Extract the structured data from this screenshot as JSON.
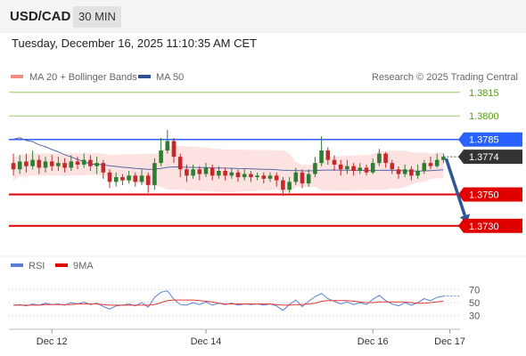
{
  "header": {
    "symbol": "USD/CAD",
    "timeframe": "30 MIN",
    "timestamp": "Tuesday, December 16, 2025 11:10:35 AM CET"
  },
  "legend": {
    "ma20_label": "MA 20 + Bollinger Bands",
    "ma50_label": "MA 50",
    "copyright": "Research © 2025 Trading Central"
  },
  "rsi_legend": {
    "rsi_label": "RSI",
    "ma_label": "9MA"
  },
  "colors": {
    "candle_up": "#2e7d32",
    "candle_down": "#c62828",
    "bollinger_fill": "#fde2e2",
    "ma50": "#5a6aa8",
    "resistance_green": "#9ccc65",
    "pivot_blue": "#2962ff",
    "support_red": "#e00000",
    "current_price_box": "#333333",
    "arrow": "#2f5597",
    "rsi_line": "#5b7fd6",
    "rsi_ma_line": "#e53935"
  },
  "chart_data": [
    {
      "type": "candlestick",
      "ylim": [
        1.3714,
        1.3833
      ],
      "current_price": 1.3774,
      "x_ticks": [
        {
          "label": "Dec 12",
          "index": 6
        },
        {
          "label": "Dec 14",
          "index": 30
        },
        {
          "label": "Dec 16",
          "index": 56
        },
        {
          "label": "Dec 17",
          "index": 68
        }
      ],
      "levels": [
        {
          "value": 1.3815,
          "label": "1.3815",
          "kind": "resistance"
        },
        {
          "value": 1.38,
          "label": "1.3800",
          "kind": "resistance"
        },
        {
          "value": 1.3785,
          "label": "1.3785",
          "kind": "pivot"
        },
        {
          "value": 1.3774,
          "label": "1.3774",
          "kind": "current"
        },
        {
          "value": 1.375,
          "label": "1.3750",
          "kind": "support"
        },
        {
          "value": 1.373,
          "label": "1.3730",
          "kind": "support"
        }
      ],
      "forecast_arrow": {
        "from_index": 67,
        "from_value": 1.3774,
        "to_index": 71,
        "to_value": 1.373
      },
      "candles": [
        [
          1.377,
          1.3766,
          1.3776,
          1.3762
        ],
        [
          1.3766,
          1.3771,
          1.3775,
          1.3763
        ],
        [
          1.3771,
          1.3768,
          1.3776,
          1.3764
        ],
        [
          1.3768,
          1.3772,
          1.3778,
          1.3766
        ],
        [
          1.3772,
          1.3767,
          1.3775,
          1.3763
        ],
        [
          1.3767,
          1.3771,
          1.3774,
          1.3764
        ],
        [
          1.3771,
          1.3768,
          1.3775,
          1.3765
        ],
        [
          1.3768,
          1.377,
          1.3774,
          1.3765
        ],
        [
          1.377,
          1.3767,
          1.3773,
          1.3764
        ],
        [
          1.3767,
          1.3771,
          1.3775,
          1.3765
        ],
        [
          1.3771,
          1.3769,
          1.3774,
          1.3766
        ],
        [
          1.3769,
          1.3772,
          1.3776,
          1.3767
        ],
        [
          1.3772,
          1.3768,
          1.3775,
          1.3765
        ],
        [
          1.3768,
          1.377,
          1.3774,
          1.3763
        ],
        [
          1.377,
          1.3764,
          1.3772,
          1.376
        ],
        [
          1.3764,
          1.3758,
          1.3766,
          1.3754
        ],
        [
          1.3758,
          1.3761,
          1.3764,
          1.3755
        ],
        [
          1.3761,
          1.3759,
          1.3763,
          1.3756
        ],
        [
          1.3759,
          1.3762,
          1.3765,
          1.3757
        ],
        [
          1.3762,
          1.3758,
          1.3764,
          1.3755
        ],
        [
          1.3758,
          1.3762,
          1.3766,
          1.3756
        ],
        [
          1.3762,
          1.3756,
          1.3764,
          1.3751
        ],
        [
          1.3756,
          1.377,
          1.3773,
          1.3753
        ],
        [
          1.377,
          1.3778,
          1.3786,
          1.3768
        ],
        [
          1.3778,
          1.3784,
          1.3791,
          1.3776
        ],
        [
          1.3784,
          1.3774,
          1.3786,
          1.377
        ],
        [
          1.3774,
          1.3766,
          1.3776,
          1.3761
        ],
        [
          1.3766,
          1.3762,
          1.3769,
          1.3758
        ],
        [
          1.3762,
          1.3766,
          1.3769,
          1.376
        ],
        [
          1.3766,
          1.3763,
          1.3768,
          1.3759
        ],
        [
          1.3763,
          1.3767,
          1.377,
          1.3761
        ],
        [
          1.3767,
          1.3762,
          1.3769,
          1.3759
        ],
        [
          1.3762,
          1.3765,
          1.3768,
          1.376
        ],
        [
          1.3765,
          1.3762,
          1.3767,
          1.3759
        ],
        [
          1.3762,
          1.3764,
          1.3767,
          1.376
        ],
        [
          1.3764,
          1.3761,
          1.3766,
          1.3758
        ],
        [
          1.3761,
          1.3763,
          1.3766,
          1.3759
        ],
        [
          1.3763,
          1.3761,
          1.3765,
          1.3758
        ],
        [
          1.3761,
          1.3762,
          1.3764,
          1.3759
        ],
        [
          1.3762,
          1.376,
          1.3764,
          1.3757
        ],
        [
          1.376,
          1.3762,
          1.3764,
          1.3758
        ],
        [
          1.3762,
          1.3759,
          1.3764,
          1.3755
        ],
        [
          1.3759,
          1.3753,
          1.3761,
          1.3749
        ],
        [
          1.3753,
          1.3758,
          1.3761,
          1.3751
        ],
        [
          1.3758,
          1.3764,
          1.3767,
          1.3756
        ],
        [
          1.3764,
          1.3757,
          1.3766,
          1.3754
        ],
        [
          1.3757,
          1.3763,
          1.3766,
          1.3755
        ],
        [
          1.3763,
          1.377,
          1.3774,
          1.3761
        ],
        [
          1.377,
          1.3778,
          1.3787,
          1.3768
        ],
        [
          1.3778,
          1.3772,
          1.378,
          1.3769
        ],
        [
          1.3772,
          1.3769,
          1.3775,
          1.3765
        ],
        [
          1.3769,
          1.3766,
          1.3772,
          1.3762
        ],
        [
          1.3766,
          1.3768,
          1.3772,
          1.3763
        ],
        [
          1.3768,
          1.3765,
          1.377,
          1.3762
        ],
        [
          1.3765,
          1.3767,
          1.377,
          1.3763
        ],
        [
          1.3767,
          1.3764,
          1.3769,
          1.3762
        ],
        [
          1.3764,
          1.377,
          1.3773,
          1.3763
        ],
        [
          1.377,
          1.3776,
          1.3779,
          1.3768
        ],
        [
          1.3776,
          1.377,
          1.3777,
          1.3767
        ],
        [
          1.377,
          1.3766,
          1.3772,
          1.3763
        ],
        [
          1.3766,
          1.3763,
          1.3768,
          1.376
        ],
        [
          1.3763,
          1.3766,
          1.3769,
          1.3761
        ],
        [
          1.3766,
          1.3762,
          1.3768,
          1.3759
        ],
        [
          1.3762,
          1.3765,
          1.3769,
          1.376
        ],
        [
          1.3765,
          1.377,
          1.3772,
          1.3763
        ],
        [
          1.377,
          1.3768,
          1.3774,
          1.3766
        ],
        [
          1.3768,
          1.3772,
          1.3776,
          1.3767
        ],
        [
          1.3772,
          1.3774,
          1.3776,
          1.377
        ]
      ]
    },
    {
      "type": "line",
      "title": "RSI",
      "ylim": [
        20,
        80
      ],
      "y_ticks": [
        30,
        50,
        70
      ],
      "series": [
        {
          "name": "RSI",
          "values": [
            46,
            47,
            45,
            48,
            46,
            49,
            47,
            48,
            46,
            50,
            48,
            51,
            47,
            49,
            44,
            40,
            45,
            46,
            48,
            45,
            50,
            43,
            58,
            66,
            68,
            55,
            47,
            46,
            50,
            47,
            51,
            46,
            49,
            47,
            49,
            46,
            48,
            47,
            48,
            46,
            48,
            45,
            38,
            47,
            54,
            44,
            52,
            59,
            64,
            56,
            52,
            48,
            51,
            47,
            50,
            47,
            55,
            61,
            53,
            48,
            45,
            50,
            46,
            50,
            56,
            53,
            58,
            60
          ]
        },
        {
          "name": "9MA",
          "values": [
            46,
            46,
            46,
            46,
            46,
            47,
            47,
            47,
            47,
            47,
            48,
            48,
            48,
            48,
            47,
            46,
            46,
            46,
            46,
            46,
            46,
            46,
            47,
            50,
            53,
            54,
            54,
            54,
            54,
            53,
            52,
            51,
            49,
            48,
            48,
            48,
            48,
            48,
            48,
            48,
            48,
            47,
            46,
            46,
            47,
            47,
            48,
            49,
            52,
            53,
            53,
            53,
            53,
            52,
            51,
            50,
            50,
            51,
            51,
            51,
            51,
            51,
            50,
            49,
            49,
            50,
            51,
            52
          ]
        }
      ]
    }
  ]
}
